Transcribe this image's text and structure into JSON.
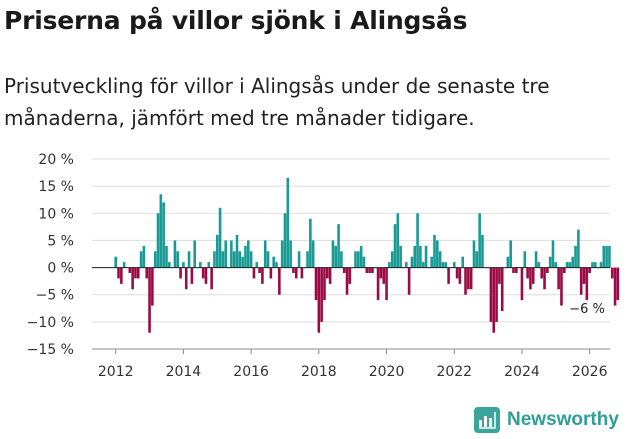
{
  "title": "Priserna på villor sjönk i Alingsås",
  "subtitle": "Prisutveckling för villor i Alingsås under de senaste tre månaderna, jämfört med tre månader tidigare.",
  "brand": {
    "name": "Newsworthy",
    "color": "#3aa59b"
  },
  "colors": {
    "positive": "#199a95",
    "negative": "#9b0a44",
    "grid": "#dddddd"
  },
  "chart_data": {
    "type": "bar",
    "title": "Priserna på villor sjönk i Alingsås",
    "xlabel": "",
    "ylabel": "",
    "ylim": [
      -15,
      20
    ],
    "xlim": [
      2011.3,
      2026.6
    ],
    "yticks": [
      20,
      15,
      10,
      5,
      0,
      -5,
      -10,
      -15
    ],
    "ytick_labels": [
      "20 %",
      "15 %",
      "10 %",
      "5 %",
      "0 %",
      "−5 %",
      "−10 %",
      "−15 %"
    ],
    "xticks": [
      2012,
      2014,
      2016,
      2018,
      2020,
      2022,
      2024,
      2026
    ],
    "xtick_labels": [
      "2012",
      "2014",
      "2016",
      "2018",
      "2020",
      "2022",
      "2024",
      "2026"
    ],
    "start_year": 2012.0,
    "step": 0.08333,
    "values": [
      2,
      -2,
      -3,
      1,
      0,
      -1,
      -4,
      -2,
      -2,
      3,
      4,
      -2,
      -12,
      -7,
      3,
      10,
      13.5,
      12,
      4,
      1,
      0,
      5,
      3,
      -2,
      1,
      -4,
      3,
      -3,
      5,
      0,
      1,
      -2,
      -3,
      1,
      -4,
      3,
      6,
      11,
      3,
      5,
      0,
      5,
      3,
      6,
      3,
      2,
      4,
      5,
      3,
      -2,
      1,
      -1,
      -3,
      5,
      3,
      -2,
      2,
      1,
      -5,
      5,
      10,
      16.5,
      5,
      -1,
      -2,
      3,
      -2,
      0,
      3,
      9,
      5,
      -6,
      -12,
      -10,
      -6,
      -2,
      -3,
      5,
      4,
      8,
      3,
      -1,
      -5,
      -3,
      0,
      3,
      3,
      4,
      2,
      -1,
      -1,
      -1,
      0,
      -6,
      -2,
      -3,
      -6,
      1,
      3,
      8,
      10,
      4,
      0,
      1,
      -5,
      2,
      4,
      10,
      4,
      1,
      4,
      0,
      2,
      6,
      5,
      3,
      1,
      1,
      -3,
      0,
      1,
      -2,
      -3,
      2,
      -5,
      -4,
      -4,
      5,
      3,
      10,
      6,
      0,
      0,
      -10,
      -12,
      -10,
      -3,
      -8,
      0,
      2,
      5,
      -1,
      -1,
      0,
      -6,
      3,
      -2,
      -4,
      -3,
      3,
      1,
      -2,
      -4,
      -1,
      2,
      5,
      1,
      -4,
      -7,
      -1,
      1,
      1,
      2,
      4,
      7,
      -5,
      -3,
      -6,
      -1,
      1,
      1,
      0,
      1,
      4,
      4,
      4,
      -2,
      -7,
      -6
    ],
    "annotations": [
      {
        "text": "−6 %",
        "x": 2025.98,
        "y": -6
      }
    ]
  }
}
